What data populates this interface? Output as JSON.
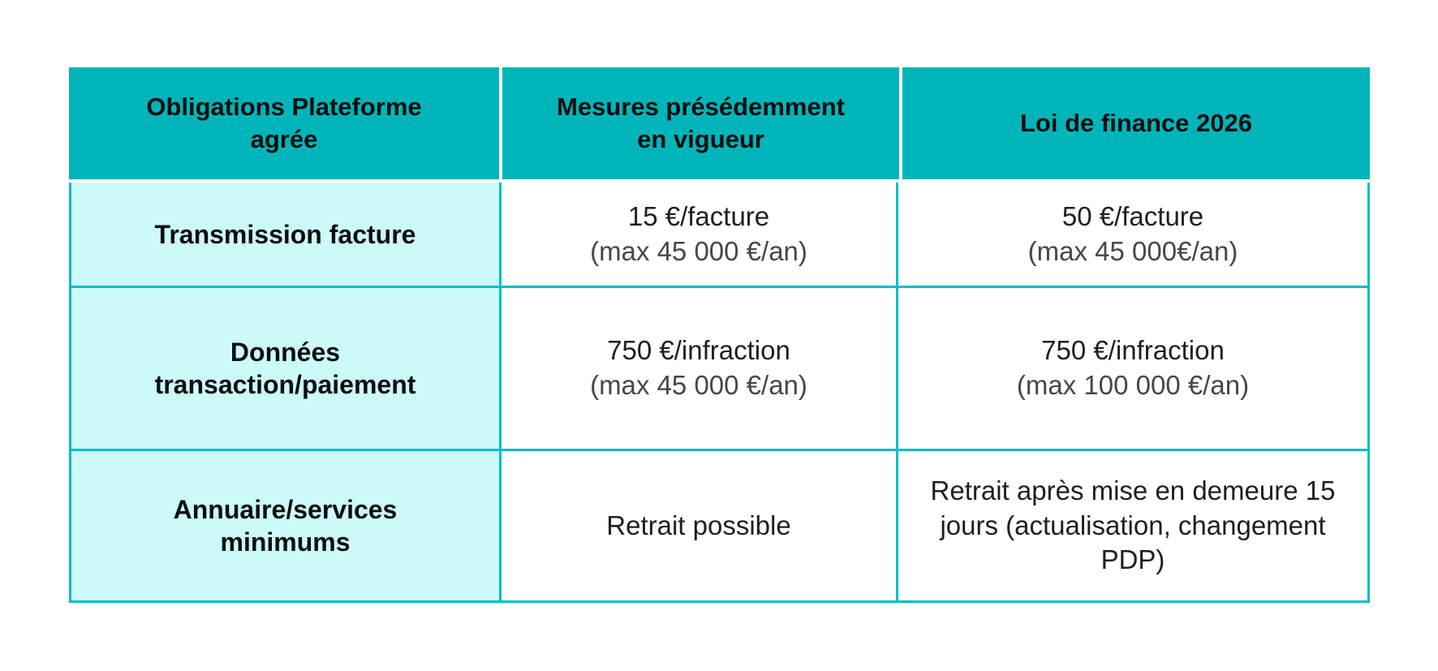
{
  "colors": {
    "page_background": "#ffffff",
    "header_background": "#00b5ba",
    "label_column_background": "#cbfaf8",
    "border_teal": "#00bec7",
    "header_text": "#0d0d0d",
    "value_text": "#1f1f1f",
    "value_secondary_text": "#474747"
  },
  "header": {
    "col1_lines": [
      "Obligations Plateforme",
      "agrée"
    ],
    "col2_lines": [
      "Mesures présédemment",
      "en vigueur"
    ],
    "col3_lines": [
      "Loi de finance 2026"
    ]
  },
  "rows": {
    "r1": {
      "label_lines": [
        "Transmission facture"
      ],
      "prev_main": "15 €/facture",
      "prev_sub": "(max 45 000 €/an)",
      "new_main": "50 €/facture",
      "new_sub": "(max 45 000€/an)"
    },
    "r2": {
      "label_lines": [
        "Données",
        "transaction/paiement"
      ],
      "prev_main": "750 €/infraction",
      "prev_sub": "(max 45 000 €/an)",
      "new_main": "750 €/infraction",
      "new_sub": "(max 100 000 €/an)"
    },
    "r3": {
      "label_lines": [
        "Annuaire/services",
        "minimums"
      ],
      "prev_main": "Retrait possible",
      "new_line1": "Retrait après mise en demeure 15",
      "new_line2": "jours (actualisation, changement PDP)"
    }
  },
  "chart_data": {
    "type": "table",
    "columns": [
      "Obligations Plateforme agrée",
      "Mesures présédemment en vigueur",
      "Loi de finance 2026"
    ],
    "rows": [
      [
        "Transmission facture",
        "15 €/facture (max 45 000 €/an)",
        "50 €/facture (max 45 000€/an)"
      ],
      [
        "Données transaction/paiement",
        "750 €/infraction (max 45 000 €/an)",
        "750 €/infraction (max 100 000 €/an)"
      ],
      [
        "Annuaire/services minimums",
        "Retrait possible",
        "Retrait après mise en demeure 15 jours (actualisation, changement PDP)"
      ]
    ],
    "layout": {
      "header_style": "teal filled cells with white gaps",
      "first_column_style": "light cyan filled, bold",
      "body_borders": "teal grid lines",
      "text_alignment": "center"
    }
  }
}
